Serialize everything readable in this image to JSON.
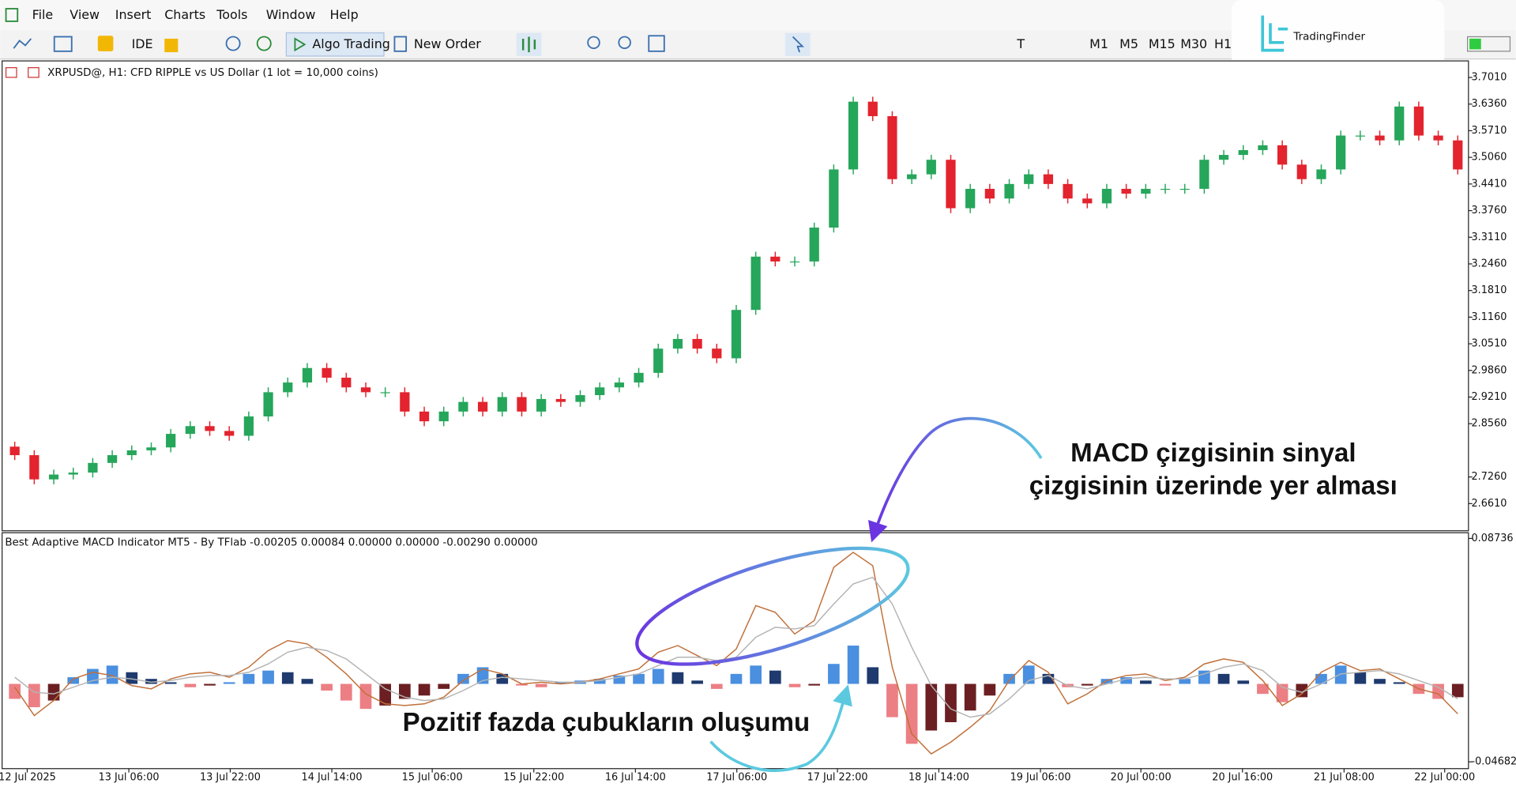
{
  "menu": [
    "File",
    "View",
    "Insert",
    "Charts",
    "Tools",
    "Window",
    "Help"
  ],
  "toolbar": {
    "ide": "IDE",
    "algo_trading": "Algo Trading",
    "new_order": "New Order",
    "timeframes": [
      "M1",
      "M5",
      "M15",
      "M30",
      "H1"
    ]
  },
  "logo": "TradingFinder",
  "annotations": {
    "macd_note": [
      "MACD çizgisinin sinyal",
      "çizgisinin üzerinde yer alması"
    ],
    "bars_note": "Pozitif fazda çubukların oluşumu"
  },
  "chart_data": [
    {
      "type": "candlestick",
      "title": "XRPUSD@, H1:  CFD RIPPLE vs US Dollar (1 lot = 10,000 coins)",
      "up_color": "#26a65b",
      "down_color": "#e3232d",
      "xlim": [
        -0.5,
        74.5
      ],
      "ylim": [
        2.597,
        3.739
      ],
      "yticks": [
        {
          "value": 3.701,
          "label": "3.7010"
        },
        {
          "value": 3.636,
          "label": "3.6360"
        },
        {
          "value": 3.571,
          "label": "3.5710"
        },
        {
          "value": 3.506,
          "label": "3.5060"
        },
        {
          "value": 3.441,
          "label": "3.4410"
        },
        {
          "value": 3.376,
          "label": "3.3760"
        },
        {
          "value": 3.311,
          "label": "3.3110"
        },
        {
          "value": 3.246,
          "label": "3.2460"
        },
        {
          "value": 3.181,
          "label": "3.1810"
        },
        {
          "value": 3.116,
          "label": "3.1160"
        },
        {
          "value": 3.051,
          "label": "3.0510"
        },
        {
          "value": 2.986,
          "label": "2.9860"
        },
        {
          "value": 2.921,
          "label": "2.9210"
        },
        {
          "value": 2.856,
          "label": "2.8560"
        },
        {
          "value": 2.726,
          "label": "2.7260"
        },
        {
          "value": 2.661,
          "label": "2.6610"
        }
      ],
      "open": [
        2.8,
        2.7792,
        2.7201,
        2.7319,
        2.7367,
        2.7603,
        2.7792,
        2.791,
        2.7981,
        2.8312,
        2.8501,
        2.8383,
        2.8265,
        2.8737,
        2.9328,
        2.9565,
        2.9919,
        2.9683,
        2.9446,
        2.9328,
        2.9328,
        2.8856,
        2.8619,
        2.8856,
        2.9092,
        2.8856,
        2.921,
        2.8856,
        2.9163,
        2.9092,
        2.9257,
        2.9446,
        2.9565,
        2.9801,
        3.0392,
        3.0628,
        3.0392,
        3.0156,
        3.1337,
        3.2637,
        3.2519,
        3.2519,
        3.3346,
        3.4765,
        3.6419,
        3.6065,
        3.4528,
        3.4646,
        3.5001,
        3.3819,
        3.4292,
        3.4055,
        3.441,
        3.4646,
        3.441,
        3.4055,
        3.3937,
        3.4292,
        3.4174,
        3.4292,
        3.4292,
        3.4292,
        3.5001,
        3.5119,
        3.5237,
        3.5355,
        3.4883,
        3.4528,
        3.4765,
        3.5592,
        3.5592,
        3.5474,
        3.6301,
        3.5592,
        3.5474
      ],
      "high": [
        2.812,
        2.7912,
        2.7439,
        2.7487,
        2.7723,
        2.7912,
        2.803,
        2.8101,
        2.8432,
        2.8621,
        2.8621,
        2.8503,
        2.8857,
        2.9448,
        2.9685,
        3.0039,
        3.0039,
        2.9803,
        2.9566,
        2.9448,
        2.9448,
        2.8976,
        2.8976,
        2.9212,
        2.9212,
        2.933,
        2.933,
        2.9283,
        2.9283,
        2.9377,
        2.9566,
        2.9685,
        2.9921,
        3.0512,
        3.0748,
        3.0748,
        3.0512,
        3.1457,
        3.2757,
        3.2757,
        3.2639,
        3.3466,
        3.4885,
        3.6539,
        3.6539,
        3.6185,
        3.4766,
        3.5121,
        3.5121,
        3.4412,
        3.4412,
        3.453,
        3.4766,
        3.4766,
        3.453,
        3.4175,
        3.4412,
        3.4412,
        3.4412,
        3.4412,
        3.4412,
        3.5121,
        3.5239,
        3.5357,
        3.5475,
        3.5475,
        3.5003,
        3.4885,
        3.5712,
        3.5712,
        3.5712,
        3.6421,
        3.6421,
        3.5712,
        3.5594
      ],
      "low": [
        2.7672,
        2.7081,
        2.7081,
        2.7199,
        2.7247,
        2.7483,
        2.7672,
        2.779,
        2.7861,
        2.8192,
        2.8263,
        2.8145,
        2.8145,
        2.8617,
        2.9208,
        2.9445,
        2.9563,
        2.9326,
        2.9208,
        2.9208,
        2.8736,
        2.8499,
        2.8499,
        2.8736,
        2.8736,
        2.8736,
        2.8736,
        2.8736,
        2.8972,
        2.8972,
        2.9137,
        2.9326,
        2.9445,
        2.9681,
        3.0272,
        3.0272,
        3.0036,
        3.0036,
        3.1217,
        3.2399,
        3.2399,
        3.2399,
        3.3226,
        3.4645,
        3.5945,
        3.4408,
        3.4408,
        3.4526,
        3.3699,
        3.3699,
        3.3935,
        3.3935,
        3.429,
        3.429,
        3.3935,
        3.3817,
        3.3817,
        3.4054,
        3.4054,
        3.4172,
        3.4172,
        3.4172,
        3.4881,
        3.4999,
        3.5117,
        3.4763,
        3.4408,
        3.4408,
        3.4645,
        3.5472,
        3.5354,
        3.5354,
        3.5472,
        3.5354,
        3.4645
      ],
      "close": [
        2.7792,
        2.7201,
        2.7319,
        2.7367,
        2.7603,
        2.7792,
        2.791,
        2.7981,
        2.8312,
        2.8501,
        2.8383,
        2.8265,
        2.8737,
        2.9328,
        2.9565,
        2.9919,
        2.9683,
        2.9446,
        2.9328,
        2.9328,
        2.8856,
        2.8619,
        2.8856,
        2.9092,
        2.8856,
        2.921,
        2.8856,
        2.9163,
        2.9092,
        2.9257,
        2.9446,
        2.9565,
        2.9801,
        3.0392,
        3.0628,
        3.0392,
        3.0156,
        3.1337,
        3.2637,
        3.2519,
        3.2519,
        3.3346,
        3.4765,
        3.6419,
        3.6065,
        3.4528,
        3.4646,
        3.5001,
        3.3819,
        3.4292,
        3.4055,
        3.441,
        3.4646,
        3.441,
        3.4055,
        3.3937,
        3.4292,
        3.4174,
        3.4292,
        3.4292,
        3.4292,
        3.5001,
        3.5119,
        3.5237,
        3.5355,
        3.4883,
        3.4528,
        3.4765,
        3.5592,
        3.5592,
        3.5474,
        3.6301,
        3.5592,
        3.5474,
        3.4765
      ]
    },
    {
      "type": "macd",
      "title": "Best Adaptive MACD Indicator MT5 - By TFlab -0.00205 0.00084 0.00000 0.00000 -0.00290 0.00000",
      "xlim": [
        -0.5,
        74.5
      ],
      "ylim": [
        -0.0509,
        0.0908
      ],
      "yticks": [
        0.08736,
        -0.04682
      ],
      "xticks": [
        {
          "value": 0.64,
          "label": "12 Jul 2025"
        },
        {
          "value": 5.85,
          "label": "13 Jul 06:00"
        },
        {
          "value": 11.05,
          "label": "13 Jul 22:00"
        },
        {
          "value": 16.26,
          "label": "14 Jul 14:00"
        },
        {
          "value": 21.41,
          "label": "15 Jul 06:00"
        },
        {
          "value": 26.62,
          "label": "15 Jul 22:00"
        },
        {
          "value": 31.83,
          "label": "16 Jul 14:00"
        },
        {
          "value": 37.03,
          "label": "17 Jul 06:00"
        },
        {
          "value": 42.19,
          "label": "17 Jul 22:00"
        },
        {
          "value": 47.39,
          "label": "18 Jul 14:00"
        },
        {
          "value": 52.6,
          "label": "19 Jul 06:00"
        },
        {
          "value": 57.75,
          "label": "20 Jul 00:00"
        },
        {
          "value": 62.96,
          "label": "20 Jul 16:00"
        },
        {
          "value": 68.17,
          "label": "21 Jul 08:00"
        },
        {
          "value": 73.33,
          "label": "22 Jul 00:00"
        }
      ],
      "histogram_colors": {
        "pos_up": "#4a8fe0",
        "pos_down": "#1e3a6e",
        "neg_down": "#ec7f84",
        "neg_up": "#6b1f22"
      },
      "histogram": [
        -0.009,
        -0.014,
        -0.01,
        0.004,
        0.009,
        0.011,
        0.007,
        0.003,
        0.001,
        -0.002,
        -0.001,
        0.001,
        0.006,
        0.008,
        0.007,
        0.003,
        -0.004,
        -0.01,
        -0.015,
        -0.013,
        -0.009,
        -0.007,
        -0.003,
        0.006,
        0.01,
        0.006,
        -0.001,
        -0.002,
        0.001,
        0.002,
        0.003,
        0.005,
        0.006,
        0.009,
        0.007,
        0.002,
        -0.003,
        0.006,
        0.011,
        0.008,
        -0.002,
        -0.001,
        0.012,
        0.023,
        0.01,
        -0.02,
        -0.036,
        -0.028,
        -0.023,
        -0.016,
        -0.007,
        0.006,
        0.011,
        0.006,
        -0.002,
        -0.001,
        0.003,
        0.004,
        0.002,
        -0.001,
        0.003,
        0.008,
        0.006,
        0.002,
        -0.006,
        -0.011,
        -0.008,
        0.006,
        0.011,
        0.007,
        0.003,
        0.001,
        -0.006,
        -0.009,
        -0.008
      ],
      "series": [
        {
          "color": "#c0703a",
          "values": [
            -0.002,
            -0.019,
            -0.01,
            0.003,
            0.007,
            0.005,
            -0.001,
            -0.003,
            0.003,
            0.006,
            0.007,
            0.004,
            0.01,
            0.02,
            0.026,
            0.024,
            0.016,
            0.006,
            -0.006,
            -0.012,
            -0.013,
            -0.012,
            -0.008,
            0.002,
            0.009,
            0.006,
            0.0,
            0.001,
            0.0,
            0.001,
            0.003,
            0.006,
            0.009,
            0.019,
            0.023,
            0.017,
            0.011,
            0.021,
            0.047,
            0.043,
            0.03,
            0.038,
            0.07,
            0.079,
            0.071,
            0.01,
            -0.03,
            -0.042,
            -0.035,
            -0.026,
            -0.016,
            0.002,
            0.014,
            0.007,
            -0.012,
            -0.006,
            0.002,
            0.005,
            0.006,
            0.002,
            0.004,
            0.012,
            0.015,
            0.013,
            0.002,
            -0.013,
            -0.006,
            0.007,
            0.013,
            0.008,
            0.009,
            0.003,
            -0.003,
            -0.006,
            -0.018
          ]
        },
        {
          "color": "#b4b4b4",
          "values": [
            0.004,
            -0.005,
            -0.006,
            -0.002,
            0.002,
            0.004,
            0.003,
            0.001,
            0.002,
            0.004,
            0.005,
            0.005,
            0.007,
            0.012,
            0.019,
            0.022,
            0.02,
            0.015,
            0.006,
            -0.003,
            -0.008,
            -0.01,
            -0.009,
            -0.004,
            0.002,
            0.004,
            0.003,
            0.002,
            0.001,
            0.001,
            0.002,
            0.004,
            0.006,
            0.011,
            0.016,
            0.016,
            0.014,
            0.016,
            0.028,
            0.034,
            0.033,
            0.035,
            0.048,
            0.06,
            0.064,
            0.048,
            0.022,
            -0.001,
            -0.015,
            -0.02,
            -0.018,
            -0.009,
            0.002,
            0.005,
            -0.001,
            -0.003,
            0.0,
            0.003,
            0.004,
            0.003,
            0.003,
            0.006,
            0.01,
            0.012,
            0.008,
            -0.002,
            -0.005,
            0.0,
            0.006,
            0.007,
            0.008,
            0.006,
            0.002,
            -0.002,
            -0.009
          ]
        }
      ]
    }
  ]
}
